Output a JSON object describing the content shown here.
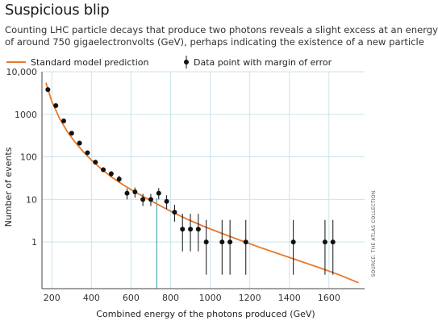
{
  "header": {
    "title": "Suspicious blip",
    "subtitle_line1": "Counting LHC particle decays that produce two photons reveals a slight excess at an energy",
    "subtitle_line2": "of around 750 gigaelectronvolts (GeV), perhaps indicating the existence of a new particle"
  },
  "colors": {
    "model_line": "#e8782a",
    "points": "#111111",
    "highlight": "#2a9aa6",
    "grid": "#c9e4ea"
  },
  "chart_data": {
    "type": "scatter",
    "title": "Suspicious blip",
    "xlabel": "Combined energy of the photons produced (GeV)",
    "ylabel": "Number of events",
    "xlim": [
      150,
      1780
    ],
    "ylim": [
      0.08,
      10000
    ],
    "yscale": "log",
    "grid": true,
    "x_ticks": [
      200,
      400,
      600,
      800,
      1000,
      1200,
      1400,
      1600
    ],
    "y_ticks": [
      {
        "value": 1,
        "label": "1"
      },
      {
        "value": 10,
        "label": "10"
      },
      {
        "value": 100,
        "label": "100"
      },
      {
        "value": 1000,
        "label": "1000"
      },
      {
        "value": 10000,
        "label": "10,000"
      }
    ],
    "legend": {
      "placement": "top",
      "model_label": "Standard model prediction",
      "data_label": "Data point with margin of error"
    },
    "annotation_x": 730,
    "source": "SOURCE: THE ATLAS COLLECTION",
    "series": [
      {
        "name": "Standard model prediction",
        "kind": "line",
        "x": [
          170,
          200,
          240,
          280,
          320,
          360,
          400,
          450,
          500,
          560,
          620,
          680,
          740,
          800,
          880,
          960,
          1050,
          1150,
          1250,
          1350,
          1450,
          1550,
          1650,
          1750
        ],
        "y": [
          5500,
          2000,
          780,
          380,
          215,
          130,
          84,
          52,
          34,
          22,
          15,
          10.5,
          7.4,
          5.3,
          3.5,
          2.4,
          1.65,
          1.1,
          0.75,
          0.52,
          0.36,
          0.25,
          0.17,
          0.11
        ]
      },
      {
        "name": "Data point with margin of error",
        "kind": "points",
        "x": [
          180,
          220,
          260,
          300,
          340,
          380,
          420,
          460,
          500,
          540,
          580,
          620,
          660,
          700,
          740,
          780,
          820,
          860,
          900,
          940,
          980,
          1060,
          1100,
          1180,
          1420,
          1580,
          1620
        ],
        "y": [
          3800,
          1600,
          700,
          360,
          210,
          125,
          75,
          50,
          40,
          30,
          14,
          15,
          10,
          10,
          14,
          9,
          5,
          2,
          2,
          2,
          1,
          1,
          1,
          1,
          1,
          1,
          1
        ],
        "err_low": [
          3400,
          1480,
          640,
          325,
          190,
          110,
          66,
          44,
          34,
          25,
          10,
          11,
          7,
          7,
          10,
          6,
          3,
          0.6,
          0.6,
          0.6,
          0.17,
          0.17,
          0.17,
          0.17,
          0.17,
          0.17,
          0.17
        ],
        "err_high": [
          4200,
          1720,
          760,
          395,
          230,
          140,
          84,
          57,
          46,
          36,
          18,
          19,
          13.5,
          13.5,
          18.5,
          12.5,
          7.5,
          4.6,
          4.6,
          4.6,
          3.3,
          3.3,
          3.3,
          3.3,
          3.3,
          3.3,
          3.3
        ]
      }
    ]
  }
}
